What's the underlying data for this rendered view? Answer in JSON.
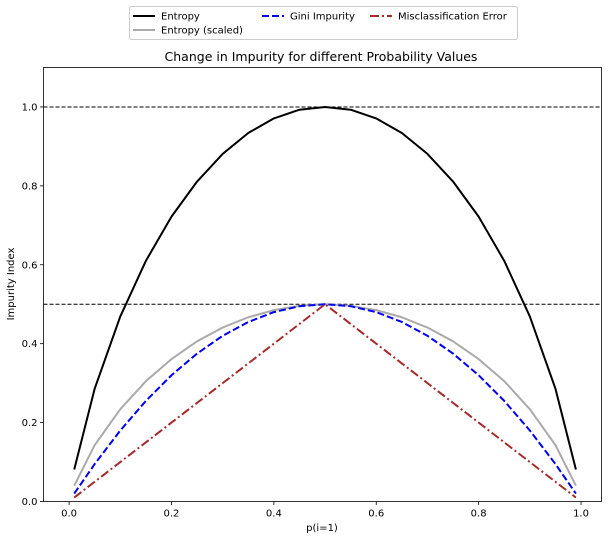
{
  "chart_data": {
    "type": "line",
    "title": "Change in Impurity for different Probability Values",
    "xlabel": "p(i=1)",
    "ylabel": "Impurity Index",
    "xlim": [
      -0.05,
      1.04
    ],
    "ylim": [
      0.0,
      1.1
    ],
    "xticks": [
      0.0,
      0.2,
      0.4,
      0.6,
      0.8,
      1.0
    ],
    "yticks": [
      0.0,
      0.2,
      0.4,
      0.6,
      0.8,
      1.0
    ],
    "hlines": [
      1.0,
      0.5
    ],
    "legend_location": "upper center, outside top",
    "x": [
      0.01,
      0.05,
      0.1,
      0.15,
      0.2,
      0.25,
      0.3,
      0.35,
      0.4,
      0.45,
      0.5,
      0.55,
      0.6,
      0.65,
      0.7,
      0.75,
      0.8,
      0.85,
      0.9,
      0.95,
      0.99
    ],
    "series": [
      {
        "name": "Entropy",
        "color": "#000000",
        "style": "solid",
        "values": [
          0.081,
          0.286,
          0.469,
          0.61,
          0.722,
          0.811,
          0.881,
          0.934,
          0.971,
          0.993,
          1.0,
          0.993,
          0.971,
          0.934,
          0.881,
          0.811,
          0.722,
          0.61,
          0.469,
          0.286,
          0.081
        ]
      },
      {
        "name": "Entropy (scaled)",
        "color": "#aaaaaa",
        "style": "solid",
        "values": [
          0.04,
          0.143,
          0.234,
          0.305,
          0.361,
          0.406,
          0.441,
          0.467,
          0.485,
          0.496,
          0.5,
          0.496,
          0.485,
          0.467,
          0.441,
          0.406,
          0.361,
          0.305,
          0.234,
          0.143,
          0.04
        ]
      },
      {
        "name": "Gini Impurity",
        "color": "#0000ee",
        "style": "dashed",
        "values": [
          0.02,
          0.095,
          0.18,
          0.255,
          0.32,
          0.375,
          0.42,
          0.455,
          0.48,
          0.495,
          0.5,
          0.495,
          0.48,
          0.455,
          0.42,
          0.375,
          0.32,
          0.255,
          0.18,
          0.095,
          0.02
        ]
      },
      {
        "name": "Misclassification Error",
        "color": "#a52a2a",
        "style": "dashdot",
        "values": [
          0.01,
          0.05,
          0.1,
          0.15,
          0.2,
          0.25,
          0.3,
          0.35,
          0.4,
          0.45,
          0.5,
          0.45,
          0.4,
          0.35,
          0.3,
          0.25,
          0.2,
          0.15,
          0.1,
          0.05,
          0.01
        ]
      }
    ]
  }
}
